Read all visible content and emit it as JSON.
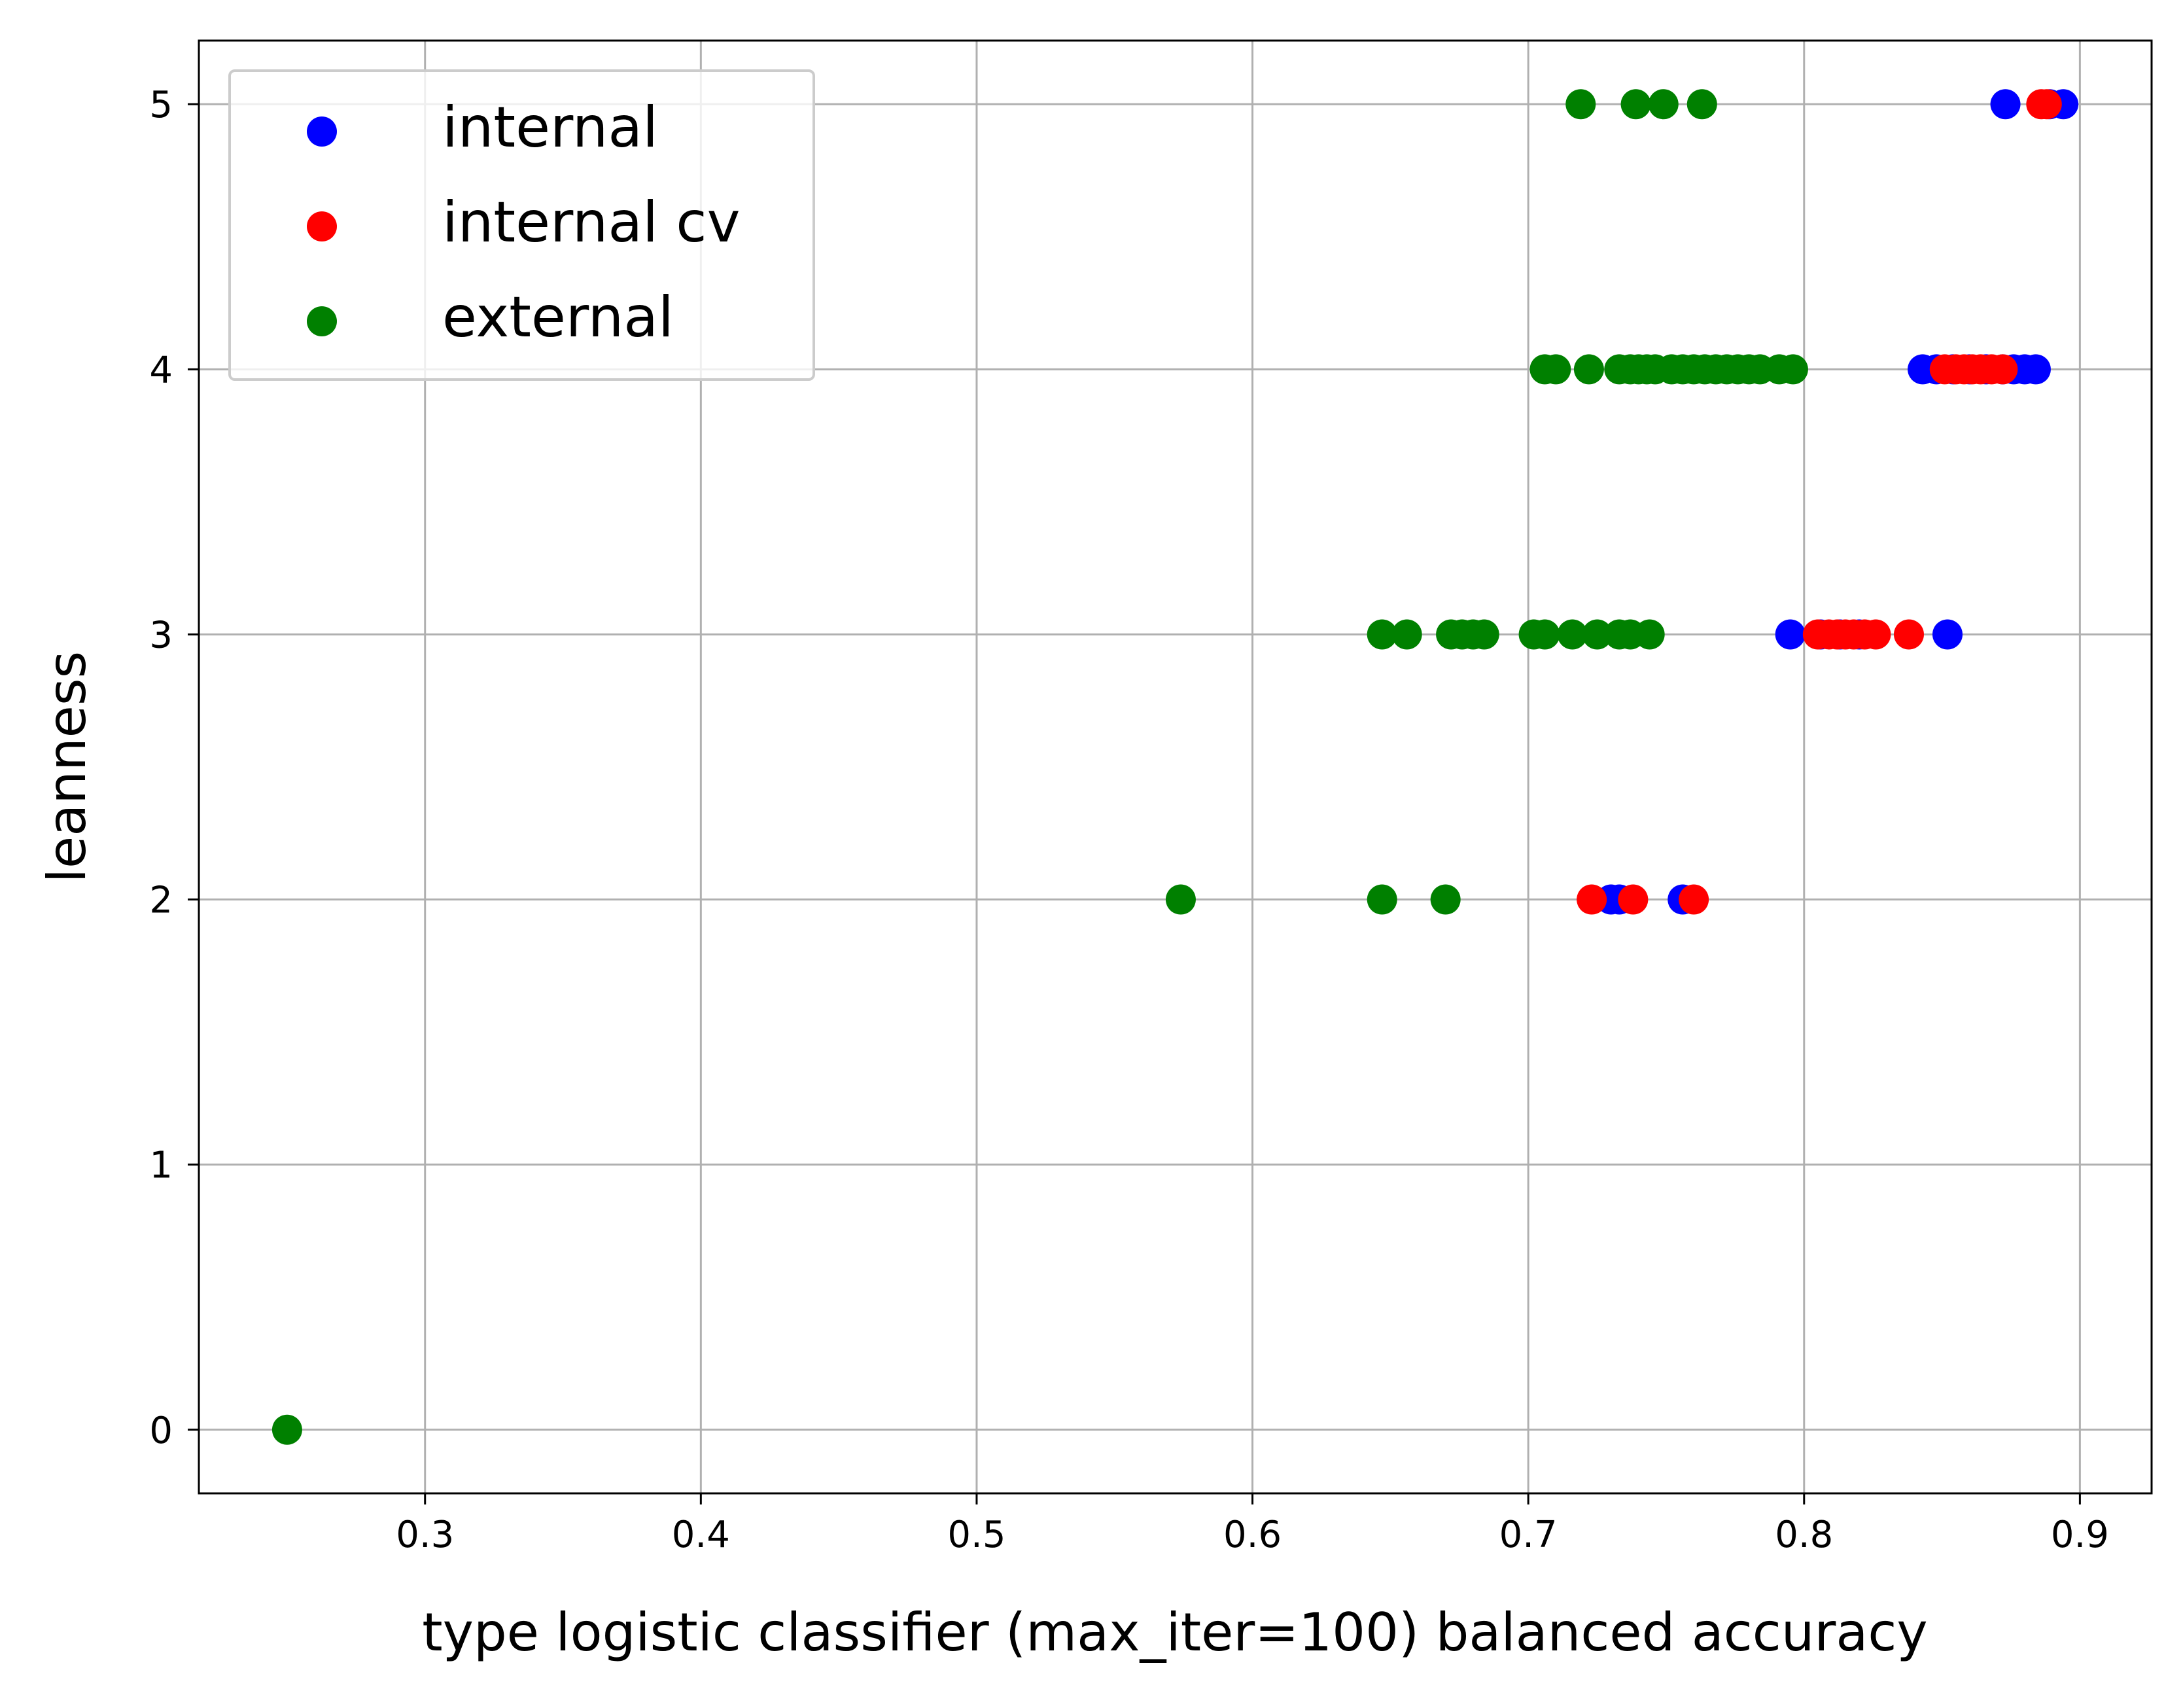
{
  "chart_data": {
    "type": "scatter",
    "xlabel": "type logistic classifier (max_iter=100) balanced accuracy",
    "ylabel": "leanness",
    "xlim": [
      0.218,
      0.926
    ],
    "ylim": [
      -0.24,
      5.24
    ],
    "xticks": [
      "0.3",
      "0.4",
      "0.5",
      "0.6",
      "0.7",
      "0.8",
      "0.9"
    ],
    "yticks": [
      "0",
      "1",
      "2",
      "3",
      "4",
      "5"
    ],
    "grid": true,
    "legend_position": "upper-left",
    "series": [
      {
        "name": "internal",
        "color": "#0000ff",
        "points": [
          [
            0.873,
            5
          ],
          [
            0.889,
            5
          ],
          [
            0.894,
            5
          ],
          [
            0.843,
            4
          ],
          [
            0.848,
            4
          ],
          [
            0.854,
            4
          ],
          [
            0.86,
            4
          ],
          [
            0.866,
            4
          ],
          [
            0.872,
            4
          ],
          [
            0.876,
            4
          ],
          [
            0.88,
            4
          ],
          [
            0.884,
            4
          ],
          [
            0.795,
            3
          ],
          [
            0.806,
            3
          ],
          [
            0.813,
            3
          ],
          [
            0.82,
            3
          ],
          [
            0.852,
            3
          ],
          [
            0.73,
            2
          ],
          [
            0.733,
            2
          ],
          [
            0.756,
            2
          ]
        ]
      },
      {
        "name": "internal cv",
        "color": "#ff0000",
        "points": [
          [
            0.886,
            5
          ],
          [
            0.888,
            5
          ],
          [
            0.851,
            4
          ],
          [
            0.855,
            4
          ],
          [
            0.858,
            4
          ],
          [
            0.861,
            4
          ],
          [
            0.864,
            4
          ],
          [
            0.868,
            4
          ],
          [
            0.872,
            4
          ],
          [
            0.805,
            3
          ],
          [
            0.809,
            3
          ],
          [
            0.812,
            3
          ],
          [
            0.815,
            3
          ],
          [
            0.818,
            3
          ],
          [
            0.822,
            3
          ],
          [
            0.826,
            3
          ],
          [
            0.838,
            3
          ],
          [
            0.723,
            2
          ],
          [
            0.738,
            2
          ],
          [
            0.76,
            2
          ]
        ]
      },
      {
        "name": "external",
        "color": "#008000",
        "points": [
          [
            0.719,
            5
          ],
          [
            0.739,
            5
          ],
          [
            0.749,
            5
          ],
          [
            0.763,
            5
          ],
          [
            0.706,
            4
          ],
          [
            0.71,
            4
          ],
          [
            0.722,
            4
          ],
          [
            0.733,
            4
          ],
          [
            0.737,
            4
          ],
          [
            0.74,
            4
          ],
          [
            0.743,
            4
          ],
          [
            0.746,
            4
          ],
          [
            0.752,
            4
          ],
          [
            0.756,
            4
          ],
          [
            0.76,
            4
          ],
          [
            0.764,
            4
          ],
          [
            0.768,
            4
          ],
          [
            0.772,
            4
          ],
          [
            0.776,
            4
          ],
          [
            0.78,
            4
          ],
          [
            0.784,
            4
          ],
          [
            0.791,
            4
          ],
          [
            0.796,
            4
          ],
          [
            0.647,
            3
          ],
          [
            0.656,
            3
          ],
          [
            0.672,
            3
          ],
          [
            0.676,
            3
          ],
          [
            0.68,
            3
          ],
          [
            0.684,
            3
          ],
          [
            0.702,
            3
          ],
          [
            0.706,
            3
          ],
          [
            0.716,
            3
          ],
          [
            0.725,
            3
          ],
          [
            0.733,
            3
          ],
          [
            0.737,
            3
          ],
          [
            0.744,
            3
          ],
          [
            0.574,
            2
          ],
          [
            0.647,
            2
          ],
          [
            0.67,
            2
          ],
          [
            0.25,
            0
          ]
        ]
      }
    ]
  }
}
